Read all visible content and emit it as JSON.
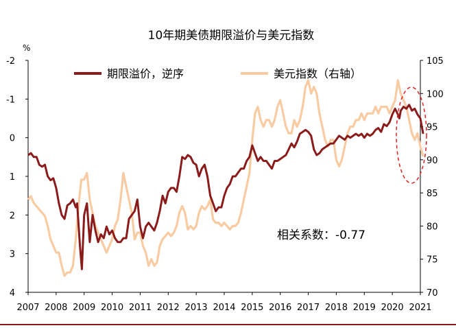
{
  "chart_data": {
    "type": "line",
    "title": "10年期美债期限溢价与美元指数",
    "left_axis_unit": "%",
    "left_axis": {
      "min": -2,
      "max": 4,
      "inverted": true,
      "ticks": [
        -2,
        -1,
        0,
        1,
        2,
        3,
        4
      ],
      "tick_labels": [
        "-2",
        "-1",
        "0",
        "1",
        "2",
        "3",
        "4"
      ]
    },
    "right_axis": {
      "min": 70,
      "max": 105,
      "ticks": [
        70,
        75,
        80,
        85,
        90,
        95,
        100,
        105
      ],
      "tick_labels": [
        "70",
        "75",
        "80",
        "85",
        "90",
        "95",
        "100",
        "105"
      ]
    },
    "x_axis": {
      "min": 2007,
      "max": 2021,
      "ticks": [
        2007,
        2008,
        2009,
        2010,
        2011,
        2012,
        2013,
        2014,
        2015,
        2016,
        2017,
        2018,
        2019,
        2020,
        2021
      ],
      "tick_labels": [
        "2007",
        "2008",
        "2009",
        "2010",
        "2011",
        "2012",
        "2013",
        "2014",
        "2015",
        "2016",
        "2017",
        "2018",
        "2019",
        "2020",
        "2021"
      ]
    },
    "series": [
      {
        "name": "期限溢价，逆序",
        "axis": "left",
        "color": "#8b1a1a",
        "points": [
          [
            2007.0,
            0.45
          ],
          [
            2007.1,
            0.4
          ],
          [
            2007.2,
            0.5
          ],
          [
            2007.3,
            0.5
          ],
          [
            2007.4,
            0.7
          ],
          [
            2007.5,
            0.75
          ],
          [
            2007.6,
            0.7
          ],
          [
            2007.7,
            1.0
          ],
          [
            2007.8,
            1.1
          ],
          [
            2007.9,
            1.05
          ],
          [
            2008.0,
            1.3
          ],
          [
            2008.1,
            1.7
          ],
          [
            2008.2,
            2.0
          ],
          [
            2008.3,
            2.1
          ],
          [
            2008.4,
            1.75
          ],
          [
            2008.5,
            1.7
          ],
          [
            2008.6,
            1.6
          ],
          [
            2008.7,
            1.8
          ],
          [
            2008.75,
            1.7
          ],
          [
            2008.85,
            2.8
          ],
          [
            2008.92,
            3.4
          ],
          [
            2009.0,
            2.0
          ],
          [
            2009.1,
            1.7
          ],
          [
            2009.2,
            2.7
          ],
          [
            2009.3,
            2.0
          ],
          [
            2009.4,
            2.4
          ],
          [
            2009.5,
            2.7
          ],
          [
            2009.6,
            2.5
          ],
          [
            2009.7,
            2.6
          ],
          [
            2009.8,
            2.3
          ],
          [
            2009.9,
            2.5
          ],
          [
            2010.0,
            2.4
          ],
          [
            2010.1,
            2.6
          ],
          [
            2010.2,
            2.7
          ],
          [
            2010.3,
            2.7
          ],
          [
            2010.4,
            2.6
          ],
          [
            2010.5,
            2.6
          ],
          [
            2010.6,
            2.1
          ],
          [
            2010.7,
            2.0
          ],
          [
            2010.8,
            1.9
          ],
          [
            2010.9,
            1.6
          ],
          [
            2011.0,
            2.3
          ],
          [
            2011.1,
            2.6
          ],
          [
            2011.2,
            2.3
          ],
          [
            2011.3,
            2.2
          ],
          [
            2011.4,
            2.3
          ],
          [
            2011.5,
            2.4
          ],
          [
            2011.6,
            2.2
          ],
          [
            2011.7,
            1.9
          ],
          [
            2011.8,
            1.5
          ],
          [
            2011.9,
            1.7
          ],
          [
            2012.0,
            1.4
          ],
          [
            2012.1,
            1.3
          ],
          [
            2012.2,
            1.3
          ],
          [
            2012.3,
            1.4
          ],
          [
            2012.4,
            1.0
          ],
          [
            2012.5,
            0.5
          ],
          [
            2012.6,
            0.55
          ],
          [
            2012.7,
            0.45
          ],
          [
            2012.8,
            0.5
          ],
          [
            2012.9,
            0.65
          ],
          [
            2013.0,
            0.7
          ],
          [
            2013.1,
            1.0
          ],
          [
            2013.2,
            0.8
          ],
          [
            2013.3,
            0.7
          ],
          [
            2013.4,
            1.0
          ],
          [
            2013.5,
            1.5
          ],
          [
            2013.6,
            1.7
          ],
          [
            2013.7,
            1.9
          ],
          [
            2013.8,
            1.8
          ],
          [
            2013.9,
            1.8
          ],
          [
            2014.0,
            1.5
          ],
          [
            2014.1,
            1.3
          ],
          [
            2014.2,
            1.2
          ],
          [
            2014.3,
            1.0
          ],
          [
            2014.4,
            1.0
          ],
          [
            2014.5,
            0.9
          ],
          [
            2014.6,
            0.8
          ],
          [
            2014.7,
            0.8
          ],
          [
            2014.8,
            0.6
          ],
          [
            2014.9,
            0.5
          ],
          [
            2015.0,
            0.2
          ],
          [
            2015.1,
            0.4
          ],
          [
            2015.2,
            0.6
          ],
          [
            2015.3,
            0.5
          ],
          [
            2015.4,
            0.6
          ],
          [
            2015.5,
            0.6
          ],
          [
            2015.6,
            0.7
          ],
          [
            2015.7,
            0.8
          ],
          [
            2015.8,
            0.6
          ],
          [
            2015.9,
            0.6
          ],
          [
            2016.0,
            0.55
          ],
          [
            2016.1,
            0.5
          ],
          [
            2016.2,
            0.45
          ],
          [
            2016.3,
            0.3
          ],
          [
            2016.4,
            0.15
          ],
          [
            2016.5,
            0.25
          ],
          [
            2016.6,
            0.1
          ],
          [
            2016.7,
            -0.1
          ],
          [
            2016.8,
            -0.15
          ],
          [
            2016.9,
            -0.2
          ],
          [
            2017.0,
            -0.15
          ],
          [
            2017.1,
            -0.05
          ],
          [
            2017.2,
            0.3
          ],
          [
            2017.3,
            0.45
          ],
          [
            2017.4,
            0.4
          ],
          [
            2017.5,
            0.3
          ],
          [
            2017.6,
            0.25
          ],
          [
            2017.7,
            0.2
          ],
          [
            2017.8,
            0.15
          ],
          [
            2017.9,
            0.15
          ],
          [
            2018.0,
            0.05
          ],
          [
            2018.1,
            -0.05
          ],
          [
            2018.2,
            0.0
          ],
          [
            2018.3,
            0.05
          ],
          [
            2018.4,
            -0.05
          ],
          [
            2018.5,
            0.0
          ],
          [
            2018.6,
            -0.05
          ],
          [
            2018.7,
            -0.1
          ],
          [
            2018.8,
            -0.05
          ],
          [
            2018.9,
            -0.1
          ],
          [
            2019.0,
            0.0
          ],
          [
            2019.1,
            -0.1
          ],
          [
            2019.2,
            -0.05
          ],
          [
            2019.3,
            -0.1
          ],
          [
            2019.4,
            -0.2
          ],
          [
            2019.5,
            -0.25
          ],
          [
            2019.6,
            -0.15
          ],
          [
            2019.7,
            -0.35
          ],
          [
            2019.8,
            -0.3
          ],
          [
            2019.9,
            -0.4
          ],
          [
            2020.0,
            -0.6
          ],
          [
            2020.1,
            -0.75
          ],
          [
            2020.2,
            -0.6
          ],
          [
            2020.25,
            -0.5
          ],
          [
            2020.3,
            -0.7
          ],
          [
            2020.4,
            -0.8
          ],
          [
            2020.5,
            -0.75
          ],
          [
            2020.6,
            -0.85
          ],
          [
            2020.7,
            -0.7
          ],
          [
            2020.8,
            -0.75
          ],
          [
            2020.9,
            -0.6
          ],
          [
            2021.0,
            -0.5
          ],
          [
            2021.1,
            -0.1
          ]
        ]
      },
      {
        "name": "美元指数（右轴）",
        "axis": "right",
        "color": "#f8cba2",
        "points": [
          [
            2007.0,
            84
          ],
          [
            2007.1,
            84.5
          ],
          [
            2007.2,
            83.5
          ],
          [
            2007.3,
            83
          ],
          [
            2007.4,
            82.5
          ],
          [
            2007.5,
            82
          ],
          [
            2007.6,
            81.5
          ],
          [
            2007.7,
            80
          ],
          [
            2007.8,
            78
          ],
          [
            2007.9,
            77
          ],
          [
            2008.0,
            76
          ],
          [
            2008.1,
            76
          ],
          [
            2008.2,
            74
          ],
          [
            2008.3,
            72.5
          ],
          [
            2008.4,
            73
          ],
          [
            2008.5,
            73
          ],
          [
            2008.6,
            74
          ],
          [
            2008.7,
            78
          ],
          [
            2008.8,
            83
          ],
          [
            2008.9,
            87
          ],
          [
            2009.0,
            87
          ],
          [
            2009.1,
            88
          ],
          [
            2009.2,
            84
          ],
          [
            2009.3,
            82
          ],
          [
            2009.4,
            80
          ],
          [
            2009.5,
            79
          ],
          [
            2009.6,
            78
          ],
          [
            2009.7,
            77
          ],
          [
            2009.8,
            76
          ],
          [
            2009.9,
            77
          ],
          [
            2010.0,
            78
          ],
          [
            2010.1,
            80
          ],
          [
            2010.2,
            81
          ],
          [
            2010.3,
            84
          ],
          [
            2010.4,
            88
          ],
          [
            2010.5,
            86
          ],
          [
            2010.6,
            84
          ],
          [
            2010.7,
            82
          ],
          [
            2010.8,
            78
          ],
          [
            2010.9,
            79
          ],
          [
            2011.0,
            79
          ],
          [
            2011.1,
            77
          ],
          [
            2011.2,
            76
          ],
          [
            2011.3,
            74
          ],
          [
            2011.4,
            75
          ],
          [
            2011.5,
            74
          ],
          [
            2011.6,
            74.5
          ],
          [
            2011.7,
            77
          ],
          [
            2011.8,
            78
          ],
          [
            2011.9,
            78.5
          ],
          [
            2012.0,
            79
          ],
          [
            2012.1,
            78.5
          ],
          [
            2012.2,
            79
          ],
          [
            2012.3,
            80
          ],
          [
            2012.4,
            82
          ],
          [
            2012.5,
            83
          ],
          [
            2012.6,
            82
          ],
          [
            2012.7,
            79.5
          ],
          [
            2012.8,
            80
          ],
          [
            2012.9,
            79.5
          ],
          [
            2013.0,
            80
          ],
          [
            2013.1,
            82
          ],
          [
            2013.2,
            83
          ],
          [
            2013.3,
            82.5
          ],
          [
            2013.4,
            83
          ],
          [
            2013.5,
            84
          ],
          [
            2013.6,
            81
          ],
          [
            2013.7,
            80.5
          ],
          [
            2013.8,
            80.5
          ],
          [
            2013.9,
            80
          ],
          [
            2014.0,
            80.5
          ],
          [
            2014.1,
            80
          ],
          [
            2014.2,
            79.5
          ],
          [
            2014.3,
            80
          ],
          [
            2014.4,
            80
          ],
          [
            2014.5,
            80.5
          ],
          [
            2014.6,
            82
          ],
          [
            2014.7,
            84
          ],
          [
            2014.8,
            86
          ],
          [
            2014.9,
            88
          ],
          [
            2015.0,
            93
          ],
          [
            2015.1,
            97
          ],
          [
            2015.2,
            98
          ],
          [
            2015.3,
            96
          ],
          [
            2015.4,
            95
          ],
          [
            2015.5,
            96
          ],
          [
            2015.6,
            96
          ],
          [
            2015.7,
            95
          ],
          [
            2015.8,
            96
          ],
          [
            2015.9,
            98
          ],
          [
            2016.0,
            99
          ],
          [
            2016.1,
            97
          ],
          [
            2016.2,
            95
          ],
          [
            2016.3,
            94
          ],
          [
            2016.4,
            94
          ],
          [
            2016.5,
            96
          ],
          [
            2016.6,
            95
          ],
          [
            2016.7,
            96
          ],
          [
            2016.8,
            98
          ],
          [
            2016.9,
            101
          ],
          [
            2017.0,
            102
          ],
          [
            2017.1,
            100
          ],
          [
            2017.2,
            101
          ],
          [
            2017.3,
            100
          ],
          [
            2017.4,
            97
          ],
          [
            2017.5,
            95
          ],
          [
            2017.6,
            93
          ],
          [
            2017.7,
            92
          ],
          [
            2017.8,
            93
          ],
          [
            2017.9,
            93
          ],
          [
            2018.0,
            90
          ],
          [
            2018.1,
            89
          ],
          [
            2018.2,
            90
          ],
          [
            2018.3,
            92
          ],
          [
            2018.4,
            94
          ],
          [
            2018.5,
            95
          ],
          [
            2018.6,
            95
          ],
          [
            2018.7,
            96
          ],
          [
            2018.8,
            96
          ],
          [
            2018.9,
            97
          ],
          [
            2019.0,
            96
          ],
          [
            2019.1,
            97
          ],
          [
            2019.2,
            97
          ],
          [
            2019.3,
            97
          ],
          [
            2019.4,
            98
          ],
          [
            2019.5,
            97
          ],
          [
            2019.6,
            98
          ],
          [
            2019.7,
            98
          ],
          [
            2019.8,
            98
          ],
          [
            2019.9,
            97
          ],
          [
            2020.0,
            98
          ],
          [
            2020.1,
            99
          ],
          [
            2020.2,
            102
          ],
          [
            2020.3,
            100
          ],
          [
            2020.4,
            99
          ],
          [
            2020.5,
            98
          ],
          [
            2020.6,
            96
          ],
          [
            2020.7,
            94
          ],
          [
            2020.8,
            93
          ],
          [
            2020.9,
            94
          ],
          [
            2021.0,
            92
          ],
          [
            2021.1,
            90.5
          ]
        ]
      }
    ],
    "annotation": "相关系数：-0.77",
    "highlight": {
      "shape": "dashed-ellipse",
      "color": "#e02020",
      "x_range": [
        2020.4,
        2021.1
      ]
    }
  }
}
